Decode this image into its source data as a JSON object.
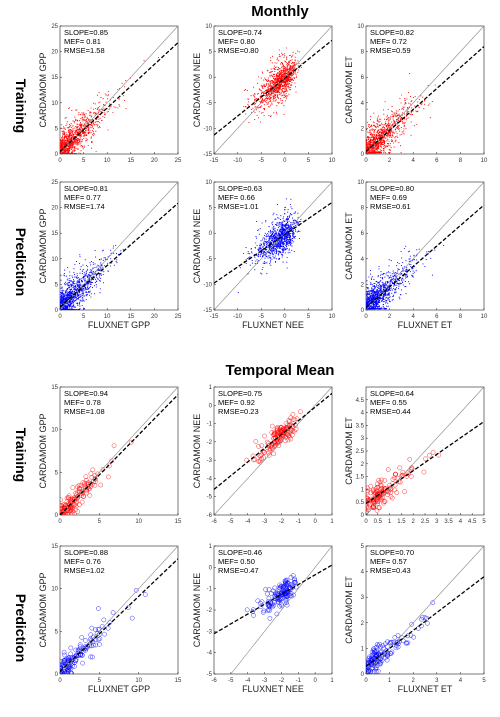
{
  "sections": [
    {
      "title": "Monthly"
    },
    {
      "title": "Temporal Mean"
    }
  ],
  "row_labels": [
    "Training",
    "Prediction",
    "Training",
    "Prediction"
  ],
  "colors": {
    "training": "#ff0000",
    "prediction": "#0000ff",
    "one_to_one": "#888888",
    "fit": "#000000"
  },
  "chart_data": [
    {
      "type": "scatter",
      "section": "Monthly",
      "row": "Training",
      "marker": "dot",
      "color": "#ff0000",
      "xlabel": "",
      "ylabel": "CARDAMOM GPP",
      "xlim": [
        0,
        25
      ],
      "ylim": [
        0,
        25
      ],
      "xticks": [
        0,
        5,
        10,
        15,
        20,
        25
      ],
      "yticks": [
        0,
        5,
        10,
        15,
        20,
        25
      ],
      "fit": {
        "slope": 0.85,
        "intercept": 0.5
      },
      "stats": {
        "slope": "SLOPE=0.85",
        "mef": "MEF= 0.81",
        "rmse": "RMSE=1.58"
      }
    },
    {
      "type": "scatter",
      "section": "Monthly",
      "row": "Training",
      "marker": "dot",
      "color": "#ff0000",
      "xlabel": "",
      "ylabel": "CARDAMOM NEE",
      "xlim": [
        -15,
        10
      ],
      "ylim": [
        -15,
        10
      ],
      "xticks": [
        -15,
        -10,
        -5,
        0,
        5,
        10
      ],
      "yticks": [
        -15,
        -10,
        -5,
        0,
        5,
        10
      ],
      "fit": {
        "slope": 0.74,
        "intercept": -0.2
      },
      "stats": {
        "slope": "SLOPE=0.74",
        "mef": "MEF= 0.80",
        "rmse": "RMSE=0.80"
      }
    },
    {
      "type": "scatter",
      "section": "Monthly",
      "row": "Training",
      "marker": "dot",
      "color": "#ff0000",
      "xlabel": "",
      "ylabel": "CARDAMOM ET",
      "xlim": [
        0,
        10
      ],
      "ylim": [
        0,
        10
      ],
      "xticks": [
        0,
        2,
        4,
        6,
        8,
        10
      ],
      "yticks": [
        0,
        2,
        4,
        6,
        8,
        10
      ],
      "fit": {
        "slope": 0.82,
        "intercept": 0.2
      },
      "stats": {
        "slope": "SLOPE=0.82",
        "mef": "MEF= 0.72",
        "rmse": "RMSE=0.59"
      }
    },
    {
      "type": "scatter",
      "section": "Monthly",
      "row": "Prediction",
      "marker": "dot",
      "color": "#0000ff",
      "xlabel": "FLUXNET GPP",
      "ylabel": "CARDAMOM GPP",
      "xlim": [
        0,
        25
      ],
      "ylim": [
        0,
        25
      ],
      "xticks": [
        0,
        5,
        10,
        15,
        20,
        25
      ],
      "yticks": [
        0,
        5,
        10,
        15,
        20,
        25
      ],
      "fit": {
        "slope": 0.81,
        "intercept": 0.6
      },
      "stats": {
        "slope": "SLOPE=0.81",
        "mef": "MEF= 0.77",
        "rmse": "RMSE=1.74"
      }
    },
    {
      "type": "scatter",
      "section": "Monthly",
      "row": "Prediction",
      "marker": "dot",
      "color": "#0000ff",
      "xlabel": "FLUXNET NEE",
      "ylabel": "CARDAMOM NEE",
      "xlim": [
        -15,
        10
      ],
      "ylim": [
        -15,
        10
      ],
      "xticks": [
        -15,
        -10,
        -5,
        0,
        5,
        10
      ],
      "yticks": [
        -15,
        -10,
        -5,
        0,
        5,
        10
      ],
      "fit": {
        "slope": 0.63,
        "intercept": -0.3
      },
      "stats": {
        "slope": "SLOPE=0.63",
        "mef": "MEF= 0.66",
        "rmse": "RMSE=1.01"
      }
    },
    {
      "type": "scatter",
      "section": "Monthly",
      "row": "Prediction",
      "marker": "dot",
      "color": "#0000ff",
      "xlabel": "FLUXNET ET",
      "ylabel": "CARDAMOM ET",
      "xlim": [
        0,
        10
      ],
      "ylim": [
        0,
        10
      ],
      "xticks": [
        0,
        2,
        4,
        6,
        8,
        10
      ],
      "yticks": [
        0,
        2,
        4,
        6,
        8,
        10
      ],
      "fit": {
        "slope": 0.8,
        "intercept": 0.2
      },
      "stats": {
        "slope": "SLOPE=0.80",
        "mef": "MEF= 0.69",
        "rmse": "RMSE=0.61"
      }
    },
    {
      "type": "scatter",
      "section": "Temporal Mean",
      "row": "Training",
      "marker": "circle",
      "color": "#ff0000",
      "xlabel": "",
      "ylabel": "CARDAMOM GPP",
      "xlim": [
        0,
        15
      ],
      "ylim": [
        0,
        15
      ],
      "xticks": [
        0,
        5,
        10,
        15
      ],
      "yticks": [
        0,
        5,
        10,
        15
      ],
      "fit": {
        "slope": 0.94,
        "intercept": 0.0
      },
      "stats": {
        "slope": "SLOPE=0.94",
        "mef": "MEF= 0.78",
        "rmse": "RMSE=1.08"
      }
    },
    {
      "type": "scatter",
      "section": "Temporal Mean",
      "row": "Training",
      "marker": "circle",
      "color": "#ff0000",
      "xlabel": "",
      "ylabel": "CARDAMOM NEE",
      "xlim": [
        -6,
        1
      ],
      "ylim": [
        -6,
        1
      ],
      "xticks": [
        -6,
        -5,
        -4,
        -3,
        -2,
        -1,
        0,
        1
      ],
      "yticks": [
        -6,
        -5,
        -4,
        -3,
        -2,
        -1,
        0,
        1
      ],
      "fit": {
        "slope": 0.75,
        "intercept": -0.1
      },
      "stats": {
        "slope": "SLOPE=0.75",
        "mef": "MEF= 0.92",
        "rmse": "RMSE=0.23"
      }
    },
    {
      "type": "scatter",
      "section": "Temporal Mean",
      "row": "Training",
      "marker": "circle",
      "color": "#ff0000",
      "xlabel": "",
      "ylabel": "CARDAMOM ET",
      "xlim": [
        0,
        5
      ],
      "ylim": [
        0,
        5
      ],
      "xticks": [
        0,
        0.5,
        1,
        1.5,
        2,
        2.5,
        3,
        3.5,
        4,
        4.5,
        5
      ],
      "yticks": [
        0,
        0.5,
        1,
        1.5,
        2,
        2.5,
        3,
        3.5,
        4,
        4.5
      ],
      "fit": {
        "slope": 0.64,
        "intercept": 0.45
      },
      "stats": {
        "slope": "SLOPE=0.64",
        "mef": "MEF= 0.55",
        "rmse": "RMSE=0.44"
      }
    },
    {
      "type": "scatter",
      "section": "Temporal Mean",
      "row": "Prediction",
      "marker": "circle",
      "color": "#0000ff",
      "xlabel": "FLUXNET GPP",
      "ylabel": "CARDAMOM GPP",
      "xlim": [
        0,
        15
      ],
      "ylim": [
        0,
        15
      ],
      "xticks": [
        0,
        5,
        10,
        15
      ],
      "yticks": [
        0,
        5,
        10,
        15
      ],
      "fit": {
        "slope": 0.88,
        "intercept": 0.3
      },
      "stats": {
        "slope": "SLOPE=0.88",
        "mef": "MEF= 0.76",
        "rmse": "RMSE=1.02"
      }
    },
    {
      "type": "scatter",
      "section": "Temporal Mean",
      "row": "Prediction",
      "marker": "circle",
      "color": "#0000ff",
      "xlabel": "FLUXNET NEE",
      "ylabel": "CARDAMOM NEE",
      "xlim": [
        -6,
        1
      ],
      "ylim": [
        -5,
        1
      ],
      "xticks": [
        -6,
        -5,
        -4,
        -3,
        -2,
        -1,
        0,
        1
      ],
      "yticks": [
        -5,
        -4,
        -3,
        -2,
        -1,
        0,
        1
      ],
      "fit": {
        "slope": 0.46,
        "intercept": -0.35
      },
      "stats": {
        "slope": "SLOPE=0.46",
        "mef": "MEF= 0.50",
        "rmse": "RMSE=0.47"
      }
    },
    {
      "type": "scatter",
      "section": "Temporal Mean",
      "row": "Prediction",
      "marker": "circle",
      "color": "#0000ff",
      "xlabel": "FLUXNET ET",
      "ylabel": "CARDAMOM ET",
      "xlim": [
        0,
        5
      ],
      "ylim": [
        0,
        5
      ],
      "xticks": [
        0,
        1,
        2,
        3,
        4,
        5
      ],
      "yticks": [
        0,
        1,
        2,
        3,
        4,
        5
      ],
      "fit": {
        "slope": 0.7,
        "intercept": 0.3
      },
      "stats": {
        "slope": "SLOPE=0.70",
        "mef": "MEF= 0.57",
        "rmse": "RMSE=0.43"
      }
    }
  ]
}
